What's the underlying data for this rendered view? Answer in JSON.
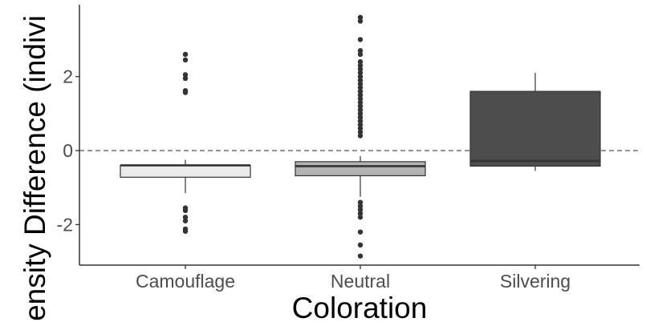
{
  "chart_data": {
    "type": "boxplot",
    "title": "",
    "xlabel": "Coloration",
    "ylabel": "ensity Difference (indivi",
    "ylim": [
      -3.1,
      3.9
    ],
    "y_ticks": [
      -2,
      0,
      2
    ],
    "y_tick_labels": [
      "-2",
      "0",
      "2"
    ],
    "reference_line": {
      "y": 0,
      "style": "dashed"
    },
    "grid": false,
    "legend": "none",
    "categories": [
      "Camouflage",
      "Neutral",
      "Silvering"
    ],
    "boxes": [
      {
        "category": "Camouflage",
        "fill": "#ebebeb",
        "q1": -0.72,
        "median": -0.4,
        "q3": -0.4,
        "whisker_low": -1.15,
        "whisker_high": -0.25,
        "outliers": [
          2.6,
          2.45,
          2.05,
          1.95,
          1.62,
          1.57,
          -1.55,
          -1.62,
          -1.8,
          -1.9,
          -2.12,
          -2.18
        ]
      },
      {
        "category": "Neutral",
        "fill": "#b3b3b3",
        "q1": -0.68,
        "median": -0.42,
        "q3": -0.3,
        "whisker_low": -1.25,
        "whisker_high": -0.15,
        "outliers": [
          3.6,
          3.5,
          3.0,
          2.7,
          2.6,
          2.4,
          2.3,
          2.2,
          2.1,
          2.0,
          1.9,
          1.8,
          1.7,
          1.6,
          1.5,
          1.4,
          1.3,
          1.2,
          1.1,
          1.0,
          0.9,
          0.8,
          0.7,
          0.6,
          0.5,
          0.4,
          -1.4,
          -1.5,
          -1.6,
          -1.7,
          -1.8,
          -2.2,
          -2.55,
          -2.85
        ]
      },
      {
        "category": "Silvering",
        "fill": "#4d4d4d",
        "q1": -0.42,
        "median": -0.28,
        "q3": 1.6,
        "whisker_low": -0.55,
        "whisker_high": 2.1,
        "outliers": []
      }
    ]
  }
}
